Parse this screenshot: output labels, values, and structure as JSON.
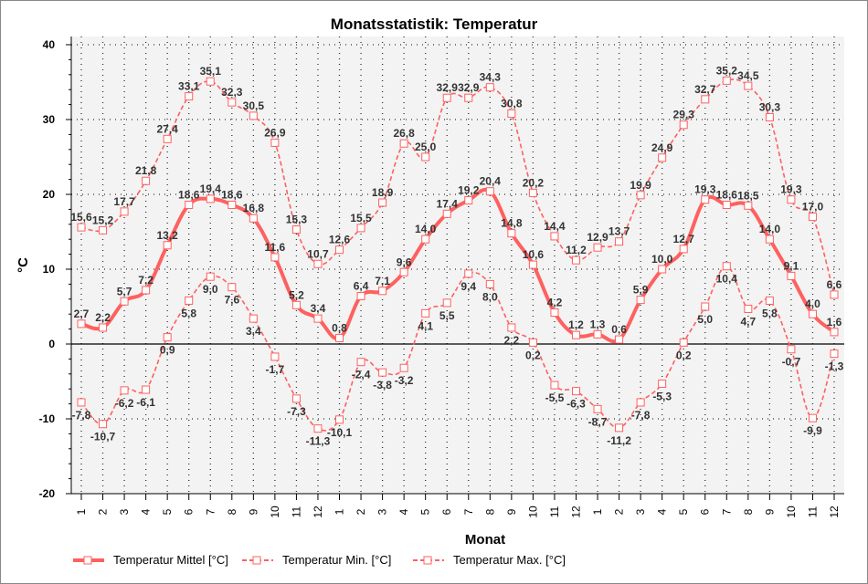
{
  "chart_data": {
    "type": "line",
    "title": "Monatsstatistik: Temperatur",
    "xlabel": "Monat",
    "ylabel": "°C",
    "ylim": [
      -20,
      40
    ],
    "yticks": [
      -20,
      -10,
      0,
      10,
      20,
      30,
      40
    ],
    "grid": true,
    "legend": "bottom",
    "categories": [
      "1",
      "2",
      "3",
      "4",
      "5",
      "6",
      "7",
      "8",
      "9",
      "10",
      "11",
      "12",
      "1",
      "2",
      "3",
      "4",
      "5",
      "6",
      "7",
      "8",
      "9",
      "10",
      "11",
      "12",
      "1",
      "2",
      "3",
      "4",
      "5",
      "6",
      "7",
      "8",
      "9",
      "10",
      "11",
      "12"
    ],
    "series": [
      {
        "name": "Temperatur Mittel [°C]",
        "style": "solid",
        "color": "#ff6060",
        "values": [
          2.7,
          2.2,
          5.7,
          7.2,
          13.2,
          18.6,
          19.4,
          18.6,
          16.8,
          11.6,
          5.2,
          3.4,
          0.8,
          6.4,
          7.1,
          9.6,
          14.0,
          17.4,
          19.2,
          20.4,
          14.8,
          10.6,
          4.2,
          1.2,
          1.3,
          0.6,
          5.9,
          10.0,
          12.7,
          19.3,
          18.6,
          18.5,
          14.0,
          9.1,
          4.0,
          1.6
        ]
      },
      {
        "name": "Temperatur Min. [°C]",
        "style": "dashed",
        "color": "#ff6060",
        "values": [
          -7.8,
          -10.7,
          -6.2,
          -6.1,
          0.9,
          5.8,
          9.0,
          7.6,
          3.4,
          -1.7,
          -7.3,
          -11.3,
          -10.1,
          -2.4,
          -3.8,
          -3.2,
          4.1,
          5.5,
          9.4,
          8.0,
          2.2,
          0.2,
          -5.5,
          -6.3,
          -8.7,
          -11.2,
          -7.8,
          -5.3,
          0.2,
          5.0,
          10.4,
          4.7,
          5.8,
          -0.7,
          -9.9,
          -1.3
        ]
      },
      {
        "name": "Temperatur Max. [°C]",
        "style": "dashed",
        "color": "#ff6060",
        "values": [
          15.6,
          15.2,
          17.7,
          21.8,
          27.4,
          33.1,
          35.1,
          32.3,
          30.5,
          26.9,
          15.3,
          10.7,
          12.6,
          15.5,
          18.9,
          26.8,
          25.0,
          32.9,
          32.9,
          34.3,
          30.8,
          20.2,
          14.4,
          11.2,
          12.9,
          13.7,
          19.9,
          24.9,
          29.3,
          32.7,
          35.2,
          34.5,
          30.3,
          19.3,
          17.0,
          6.6
        ]
      }
    ]
  }
}
